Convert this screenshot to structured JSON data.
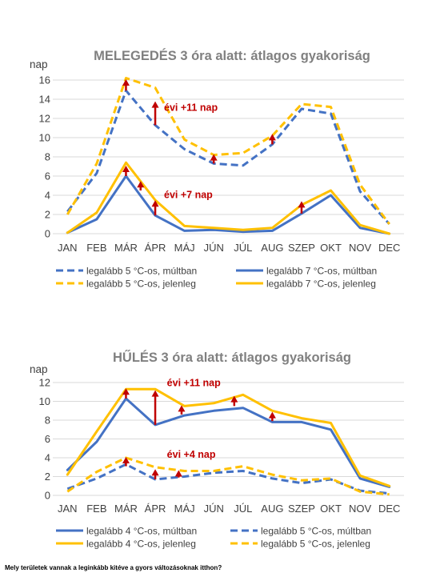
{
  "months": [
    "JAN",
    "FEB",
    "MÁR",
    "ÁPR",
    "MÁJ",
    "JÚN",
    "JÚL",
    "AUG",
    "SZEP",
    "OKT",
    "NOV",
    "DEC"
  ],
  "colors": {
    "blue": "#4472C4",
    "yellow": "#FFC000",
    "arrow": "#C00000",
    "grid": "#D9D9D9",
    "title": "#808080"
  },
  "caption": "Mely területek vannak a leginkább kitéve a gyors változásoknak itthon?",
  "chart_data": [
    {
      "type": "line",
      "title": "MELEGEDÉS 3 óra alatt: átlagos gyakoriság",
      "ylabel": "nap",
      "ylim": [
        0,
        16
      ],
      "yticks": [
        0,
        2,
        4,
        6,
        8,
        10,
        12,
        14,
        16
      ],
      "grid": true,
      "legend_position": "bottom",
      "series": [
        {
          "name": "legalább 5 °C-os, múltban",
          "color": "#4472C4",
          "dash": true,
          "values": [
            2.3,
            6.3,
            14.9,
            11.3,
            8.8,
            7.3,
            7.1,
            9.3,
            13.0,
            12.5,
            4.4,
            1.0
          ]
        },
        {
          "name": "legalább 7 °C-os, múltban",
          "color": "#4472C4",
          "dash": false,
          "values": [
            0.1,
            1.5,
            6.0,
            1.9,
            0.3,
            0.4,
            0.2,
            0.3,
            2.1,
            4.0,
            0.6,
            0.0
          ]
        },
        {
          "name": "legalább 5 °C-os, jelenleg",
          "color": "#FFC000",
          "dash": true,
          "values": [
            2.0,
            7.3,
            16.2,
            15.2,
            9.8,
            8.2,
            8.4,
            10.2,
            13.5,
            13.2,
            5.1,
            1.0
          ]
        },
        {
          "name": "legalább 7 °C-os, jelenleg",
          "color": "#FFC000",
          "dash": false,
          "values": [
            0.1,
            2.2,
            7.4,
            3.5,
            0.8,
            0.6,
            0.4,
            0.6,
            3.0,
            4.5,
            0.9,
            0.0
          ]
        }
      ],
      "arrows": [
        {
          "month": "MÁR",
          "from": 14.9,
          "to": 16.0
        },
        {
          "month": "ÁPR",
          "from": 11.3,
          "to": 13.7
        },
        {
          "month": "JÚN",
          "from": 7.3,
          "to": 8.2
        },
        {
          "month": "AUG",
          "from": 9.3,
          "to": 10.3
        },
        {
          "month": "MÁR",
          "from": 6.0,
          "to": 7.0
        },
        {
          "month": "MÁR",
          "from": 4.5,
          "to": 5.4,
          "offset": 0.5
        },
        {
          "month": "ÁPR",
          "from": 1.9,
          "to": 3.4
        },
        {
          "month": "SZEP",
          "from": 2.1,
          "to": 3.3
        }
      ],
      "annotations": [
        {
          "text": "évi +11 nap",
          "month_index": 3.3,
          "y": 12.8
        },
        {
          "text": "évi +7 nap",
          "month_index": 3.3,
          "y": 3.7
        }
      ]
    },
    {
      "type": "line",
      "title": "HŰLÉS 3 óra alatt: átlagos gyakoriság",
      "ylabel": "nap",
      "ylim": [
        0,
        12
      ],
      "yticks": [
        0,
        2,
        4,
        6,
        8,
        10,
        12
      ],
      "grid": true,
      "legend_position": "bottom",
      "series": [
        {
          "name": "legalább 4 °C-os, múltban",
          "color": "#4472C4",
          "dash": false,
          "values": [
            2.7,
            5.7,
            10.3,
            7.5,
            8.5,
            9.0,
            9.3,
            7.8,
            7.8,
            7.0,
            1.8,
            0.9
          ]
        },
        {
          "name": "legalább 5 °C-os, múltban",
          "color": "#4472C4",
          "dash": true,
          "values": [
            0.7,
            1.8,
            3.3,
            1.7,
            2.0,
            2.4,
            2.6,
            1.8,
            1.3,
            1.7,
            0.5,
            0.2
          ]
        },
        {
          "name": "legalább 4 °C-os, jelenleg",
          "color": "#FFC000",
          "dash": false,
          "values": [
            2.2,
            6.8,
            11.3,
            11.3,
            9.5,
            9.8,
            10.7,
            9.0,
            8.2,
            7.7,
            2.1,
            1.0
          ]
        },
        {
          "name": "legalább 5 °C-os, jelenleg",
          "color": "#FFC000",
          "dash": true,
          "values": [
            0.4,
            2.5,
            4.0,
            3.0,
            2.6,
            2.6,
            3.1,
            2.2,
            1.6,
            1.8,
            0.4,
            0.1
          ]
        }
      ],
      "arrows": [
        {
          "month": "MÁR",
          "from": 10.3,
          "to": 11.3
        },
        {
          "month": "ÁPR",
          "from": 7.5,
          "to": 11.1
        },
        {
          "month": "MÁJ",
          "from": 8.6,
          "to": 9.5,
          "offset": -0.1
        },
        {
          "month": "JÚL",
          "from": 9.5,
          "to": 10.5,
          "offset": -0.3
        },
        {
          "month": "AUG",
          "from": 7.9,
          "to": 8.8
        },
        {
          "month": "MÁR",
          "from": 3.1,
          "to": 4.0
        },
        {
          "month": "ÁPR",
          "from": 1.7,
          "to": 2.7
        },
        {
          "month": "MÁJ",
          "from": 1.9,
          "to": 2.6,
          "offset": -0.2
        }
      ],
      "annotations": [
        {
          "text": "évi +11 nap",
          "month_index": 3.4,
          "y": 11.6
        },
        {
          "text": "évi +4 nap",
          "month_index": 3.4,
          "y": 4.0
        }
      ]
    }
  ]
}
